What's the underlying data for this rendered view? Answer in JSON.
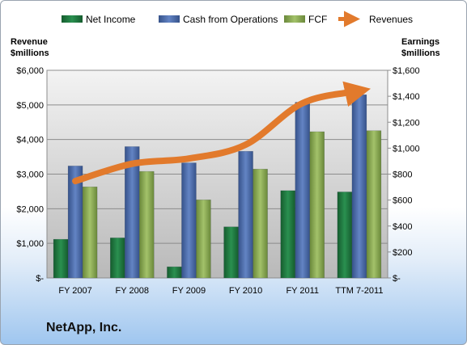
{
  "company": "NetApp, Inc.",
  "left_axis_title": [
    "Revenue",
    "$millions"
  ],
  "right_axis_title": [
    "Earnings",
    "$millions"
  ],
  "colors": {
    "net_income": "#1f7a3f",
    "cash_from_operations": "#4d6fae",
    "fcf": "#8bab52",
    "revenues": "#e27a2c",
    "plot_bg_top": "#f3f3f3",
    "plot_bg_bottom": "#b9b9b9"
  },
  "chart_data": {
    "type": "bar",
    "categories": [
      "FY 2007",
      "FY 2008",
      "FY 2009",
      "FY 2010",
      "FY 2011",
      "TTM 7-2011"
    ],
    "series": [
      {
        "name": "Net Income",
        "axis": "right",
        "type": "bar",
        "values": [
          298,
          309,
          86,
          394,
          673,
          663
        ]
      },
      {
        "name": "Cash from Operations",
        "axis": "right",
        "type": "bar",
        "values": [
          863,
          1012,
          887,
          976,
          1354,
          1412
        ]
      },
      {
        "name": "FCF",
        "axis": "right",
        "type": "bar",
        "values": [
          702,
          821,
          602,
          839,
          1127,
          1135
        ]
      },
      {
        "name": "Revenues",
        "axis": "left",
        "type": "line",
        "values": [
          2800,
          3300,
          3450,
          3850,
          5050,
          5400
        ]
      }
    ],
    "left_axis": {
      "ylim": [
        0,
        6000
      ],
      "ticks": [
        "$-",
        "$1,000",
        "$2,000",
        "$3,000",
        "$4,000",
        "$5,000",
        "$6,000"
      ]
    },
    "right_axis": {
      "ylim": [
        0,
        1600
      ],
      "ticks": [
        "$-",
        "$200",
        "$400",
        "$600",
        "$800",
        "$1,000",
        "$1,200",
        "$1,400",
        "$1,600"
      ]
    },
    "legend": [
      "Net Income",
      "Cash from Operations",
      "FCF",
      "Revenues"
    ],
    "legend_position": "top",
    "grid": true
  }
}
